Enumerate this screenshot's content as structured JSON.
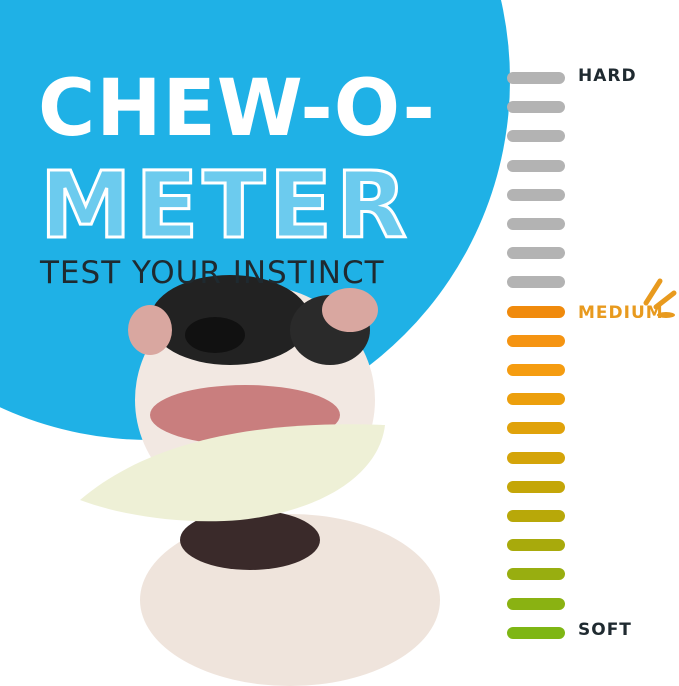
{
  "title": {
    "line1": "CHEW-O-",
    "line2": "METER",
    "tagline": "TEST YOUR INSTINCT"
  },
  "meter": {
    "labels": {
      "hard": "HARD",
      "medium": "MEDIUM",
      "soft": "SOFT"
    },
    "level": "medium",
    "bar_colors": [
      "#b3b3b3",
      "#b3b3b3",
      "#b3b3b3",
      "#b3b3b3",
      "#b3b3b3",
      "#b3b3b3",
      "#b3b3b3",
      "#b3b3b3",
      "#f08a0c",
      "#f59412",
      "#f59c10",
      "#ec9f0c",
      "#e0a20a",
      "#d4a409",
      "#c4a608",
      "#b8a809",
      "#a8aa0c",
      "#98ae10",
      "#8ab212",
      "#7eb614"
    ]
  },
  "colors": {
    "accent_blue": "#1fb1e6",
    "medium_orange": "#e89a1e",
    "label_dark": "#1f2a30"
  }
}
